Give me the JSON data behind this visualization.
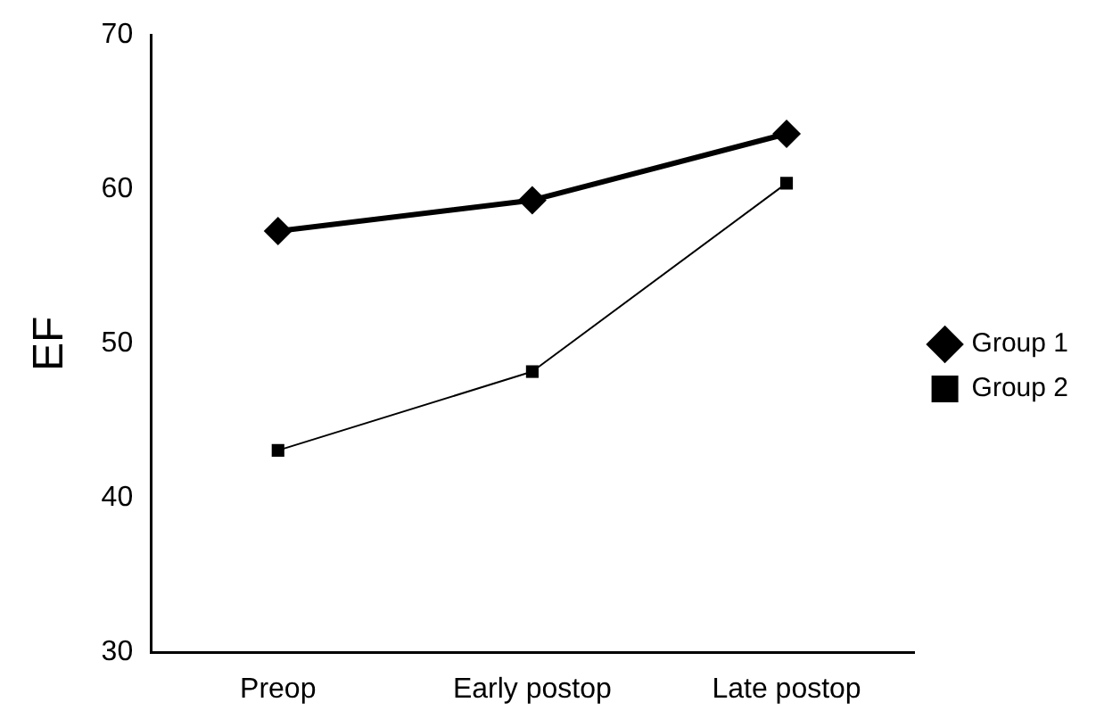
{
  "chart_data": {
    "type": "line",
    "ylabel": "EF",
    "categories": [
      "Preop",
      "Early postop",
      "Late postop"
    ],
    "series": [
      {
        "name": "Group 1",
        "color": "#000000",
        "marker": "diamond",
        "values": [
          57.3,
          59.3,
          63.6
        ]
      },
      {
        "name": "Group 2",
        "color": "#000000",
        "marker": "square",
        "values": [
          43.1,
          48.2,
          60.4
        ]
      }
    ],
    "ylim": [
      30,
      70
    ],
    "yticks": [
      30,
      40,
      50,
      60,
      70
    ],
    "grid": false,
    "legend": "right",
    "line_style": "solid"
  }
}
